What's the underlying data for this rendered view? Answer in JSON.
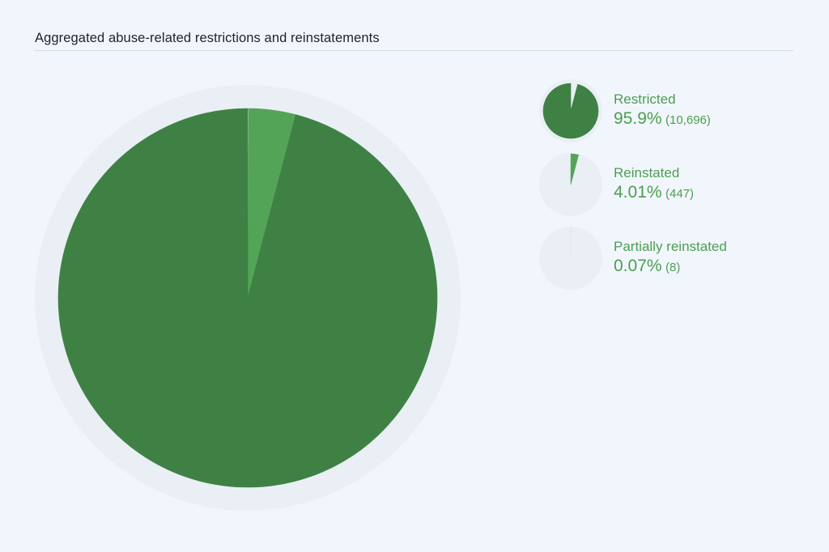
{
  "header": {
    "title": "Aggregated abuse-related restrictions and reinstatements"
  },
  "colors": {
    "restricted": "#3f8145",
    "reinstated": "#53a457",
    "partially_reinstated": "#e6edf2",
    "ring": "#e9eff4",
    "label_text": "#4c9e50"
  },
  "chart_data": {
    "type": "pie",
    "title": "Aggregated abuse-related restrictions and reinstatements",
    "series": [
      {
        "name": "Restricted",
        "value": 10696,
        "percent_label": "95.9%",
        "count_label": "(10,696)"
      },
      {
        "name": "Reinstated",
        "value": 447,
        "percent_label": "4.01%",
        "count_label": "(447)"
      },
      {
        "name": "Partially reinstated",
        "value": 8,
        "percent_label": "0.07%",
        "count_label": "(8)"
      }
    ],
    "legend_position": "right"
  }
}
